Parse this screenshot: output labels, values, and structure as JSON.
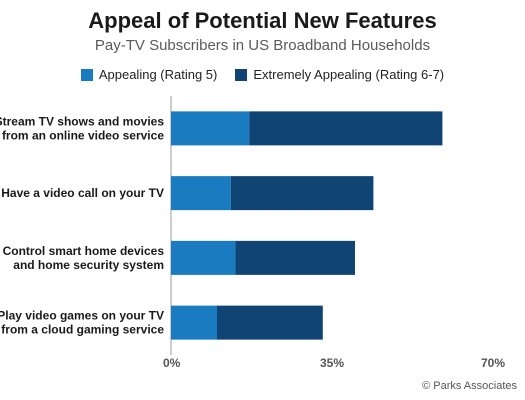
{
  "chart_data": {
    "type": "bar",
    "orientation": "horizontal",
    "stacked": true,
    "title": "Appeal of Potential New Features",
    "subtitle": "Pay-TV Subscribers in US Broadband Households",
    "categories": [
      [
        "Stream TV shows and movies",
        "from an online video service"
      ],
      [
        "Have a video call on your TV"
      ],
      [
        "Control smart home devices",
        "and home security system"
      ],
      [
        "Play video games on your TV",
        "from a cloud gaming service"
      ]
    ],
    "series": [
      {
        "name": "Appealing (Rating 5)",
        "color": "#1a7bc0",
        "values": [
          17,
          13,
          14,
          10
        ]
      },
      {
        "name": "Extremely Appealing (Rating 6-7)",
        "color": "#0f4475",
        "values": [
          42,
          31,
          26,
          23
        ]
      }
    ],
    "xlim": [
      0,
      70
    ],
    "xticks": [
      "0%",
      "35%",
      "70%"
    ],
    "xtick_values": [
      0,
      35,
      70
    ],
    "legend_position": "top"
  },
  "credit": "© Parks Associates"
}
